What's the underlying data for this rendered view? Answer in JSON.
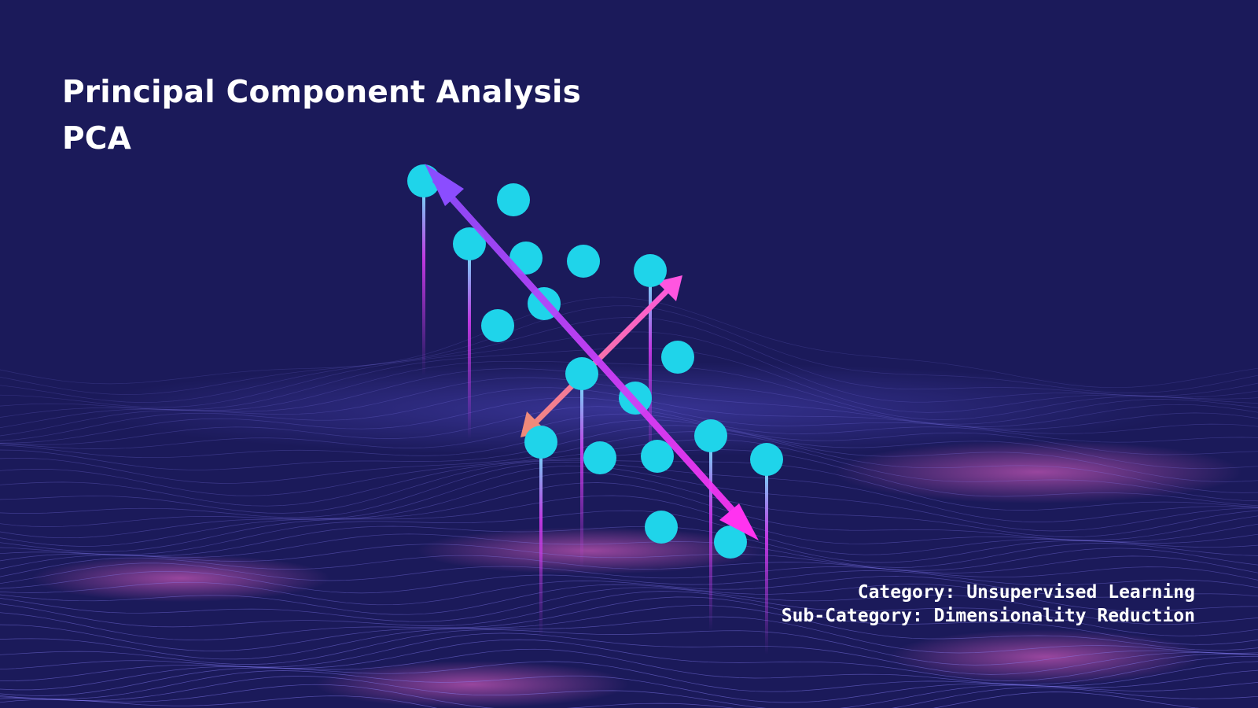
{
  "title": {
    "line1": "Principal Component Analysis",
    "line2": "PCA"
  },
  "meta": {
    "category": "Category: Unsupervised Learning",
    "subcategory": "Sub-Category: Dimensionality Reduction"
  },
  "colors": {
    "background": "#1b1a5a",
    "point": "#1fd4ea",
    "primary_axis_start": "#8b4dff",
    "primary_axis_end": "#ff33f0",
    "secondary_axis_start": "#f08a7a",
    "secondary_axis_end": "#ff55e0",
    "terrain_line": "#8d84ff",
    "terrain_glow": "#ff6ad5"
  },
  "icons": {
    "data_point": "circle",
    "component_arrow": "double-headed-arrow"
  }
}
